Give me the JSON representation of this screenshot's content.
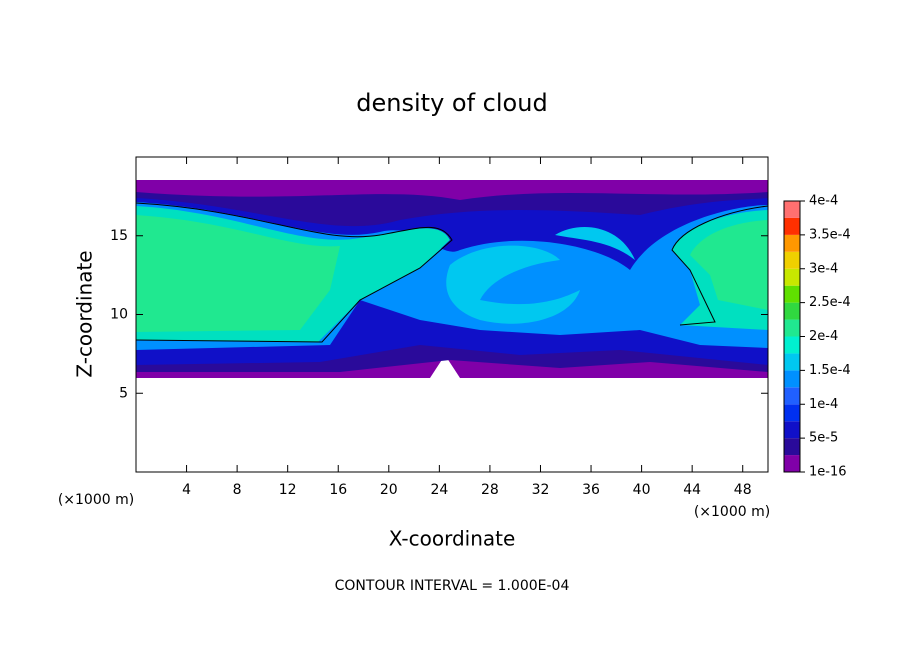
{
  "chart_data": {
    "type": "contour",
    "title": "density of cloud",
    "xlabel": "X-coordinate",
    "ylabel": "Z-coordinate",
    "x_unit_label": "(×1000 m)",
    "y_unit_label": "(×1000 m)",
    "footer": "CONTOUR INTERVAL = 1.000E-04",
    "xlim": [
      0,
      50
    ],
    "ylim": [
      0,
      20
    ],
    "xticks": [
      4,
      8,
      12,
      16,
      20,
      24,
      28,
      32,
      36,
      40,
      44,
      48
    ],
    "yticks": [
      5,
      10,
      15
    ],
    "colorbar": {
      "lim": [
        1e-16,
        0.0004
      ],
      "ticks": [
        {
          "value": 1e-16,
          "label": "1e-16"
        },
        {
          "value": 5e-05,
          "label": "5e-5"
        },
        {
          "value": 0.0001,
          "label": "1e-4"
        },
        {
          "value": 0.00015,
          "label": "1.5e-4"
        },
        {
          "value": 0.0002,
          "label": "2e-4"
        },
        {
          "value": 0.00025,
          "label": "2.5e-4"
        },
        {
          "value": 0.0003,
          "label": "3e-4"
        },
        {
          "value": 0.00035,
          "label": "3.5e-4"
        },
        {
          "value": 0.0004,
          "label": "4e-4"
        }
      ],
      "colors": [
        "#8000a8",
        "#2a0a9a",
        "#1010c8",
        "#0030f0",
        "#2060ff",
        "#0090ff",
        "#00c8f0",
        "#00f0d0",
        "#20e890",
        "#30d840",
        "#60e000",
        "#c8e800",
        "#f0d000",
        "#ff9800",
        "#ff3000",
        "#ff7070"
      ]
    }
  }
}
